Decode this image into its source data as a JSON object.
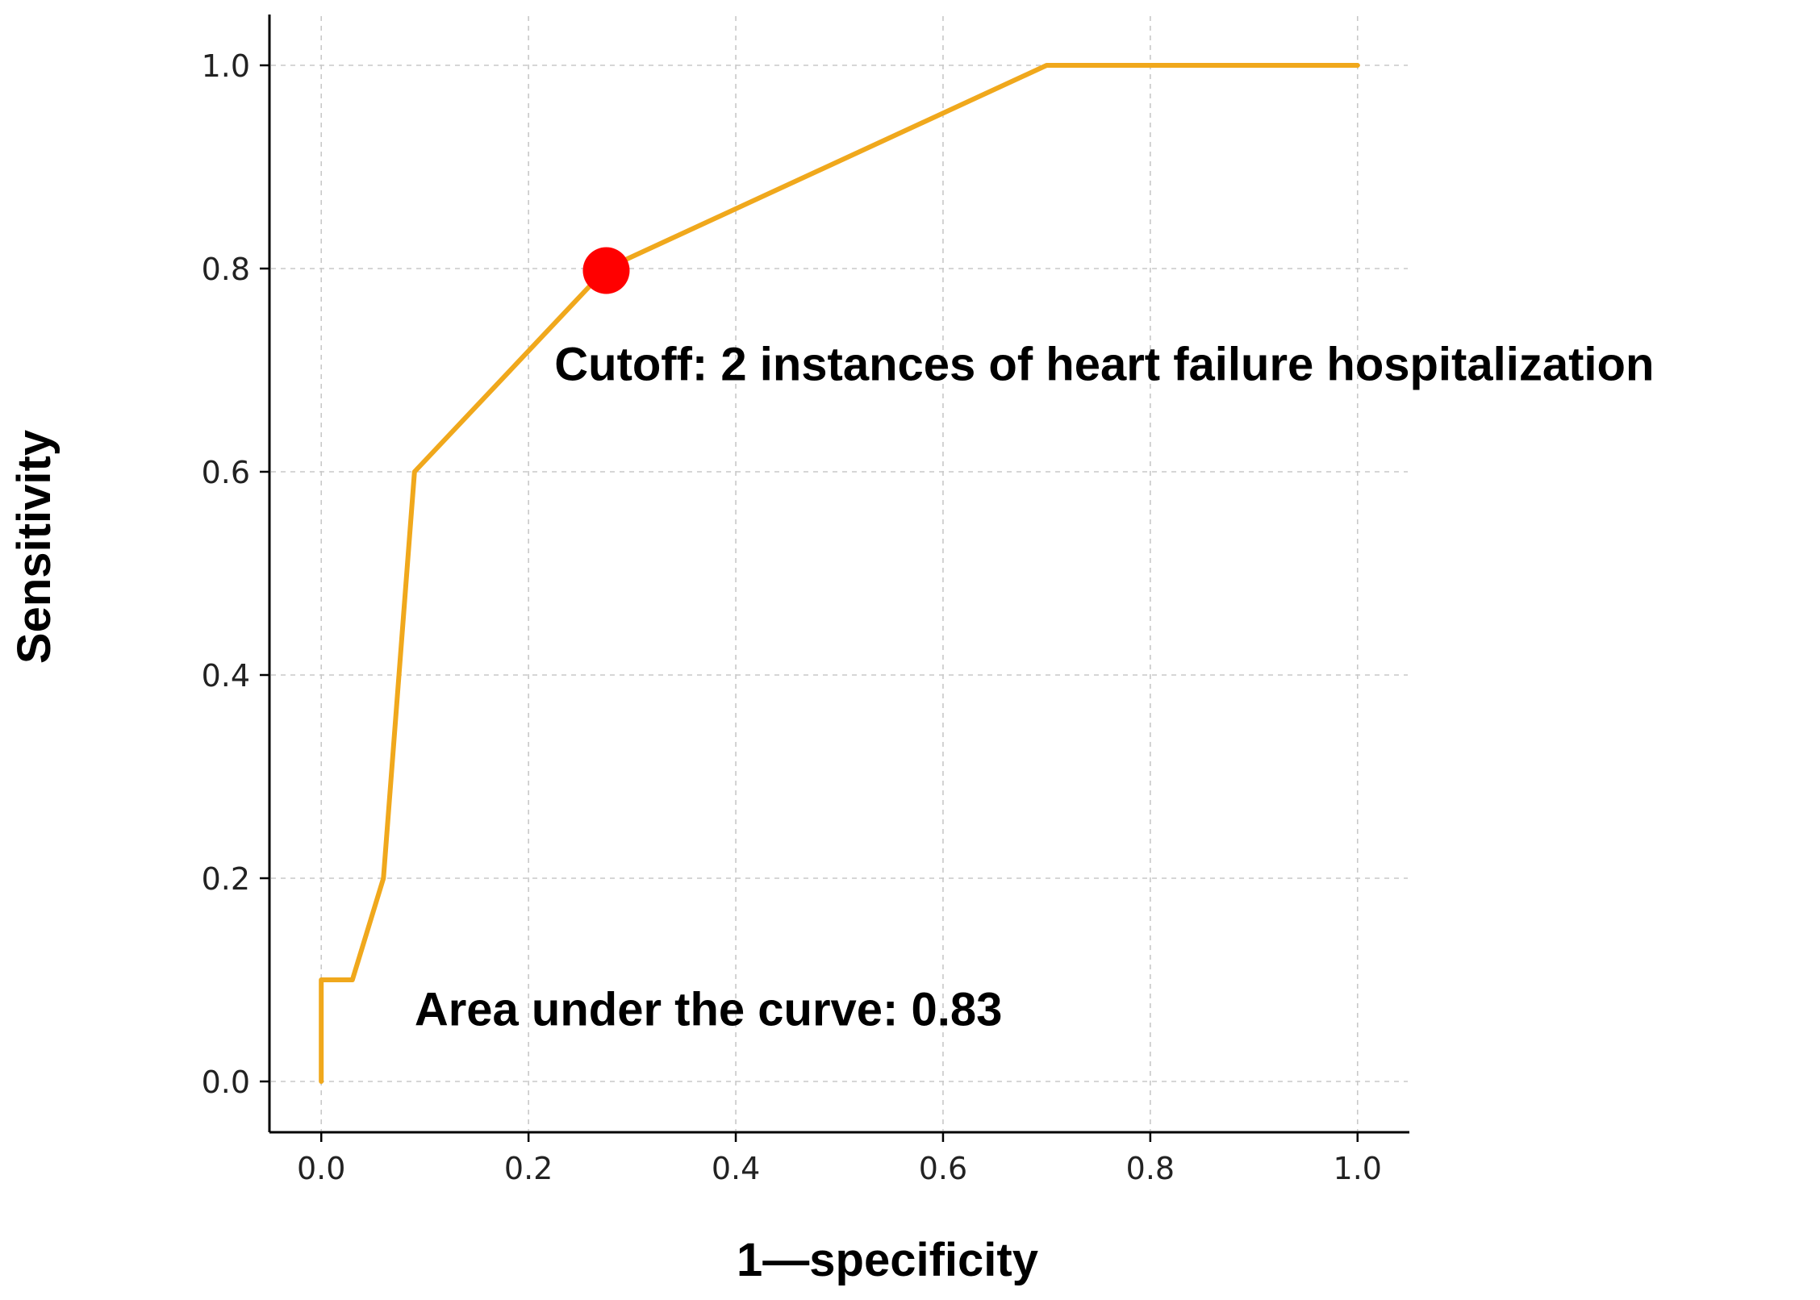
{
  "chart_data": {
    "type": "line",
    "xlabel": "1—specificity",
    "ylabel": "Sensitivity",
    "xlim": [
      -0.05,
      1.05
    ],
    "ylim": [
      -0.05,
      1.05
    ],
    "xticks": [
      0.0,
      0.2,
      0.4,
      0.6,
      0.8,
      1.0
    ],
    "yticks": [
      0.0,
      0.2,
      0.4,
      0.6,
      0.8,
      1.0
    ],
    "xtick_labels": [
      "0.0",
      "0.2",
      "0.4",
      "0.6",
      "0.8",
      "1.0"
    ],
    "ytick_labels": [
      "0.0",
      "0.2",
      "0.4",
      "0.6",
      "0.8",
      "1.0"
    ],
    "grid": true,
    "series": [
      {
        "x": [
          0.0,
          0.0,
          0.03,
          0.06,
          0.09,
          0.275,
          0.7,
          1.0
        ],
        "y": [
          0.0,
          0.1,
          0.1,
          0.2,
          0.6,
          0.8,
          1.0,
          1.0
        ],
        "color": "#f0a81c"
      }
    ],
    "highlight_point": {
      "x": 0.275,
      "y": 0.798,
      "color": "#ff0000"
    },
    "annotations": [
      {
        "text": "Cutoff: 2 instances of heart failure hospitalization",
        "x": 0.225,
        "y": 0.69
      },
      {
        "text": "Area under the curve: 0.83",
        "x": 0.09,
        "y": 0.055
      }
    ]
  }
}
